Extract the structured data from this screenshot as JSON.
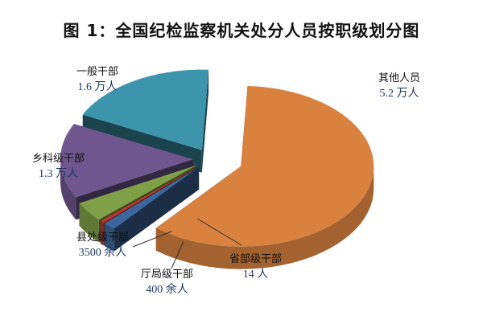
{
  "chart_data": {
    "type": "pie",
    "title": "图 1：全国纪检监察机关处分人员按职级划分图",
    "style": "3d-exploded",
    "slices": [
      {
        "name": "其他人员",
        "label_value": "5.2 万人",
        "value": 52000,
        "color": "#d9823f"
      },
      {
        "name": "省部级干部",
        "label_value": "14 人",
        "value": 14,
        "color": "#3d679c"
      },
      {
        "name": "厅局级干部",
        "label_value": "400 余人",
        "value": 400,
        "color": "#b8392f"
      },
      {
        "name": "县处级干部",
        "label_value": "3500 余人",
        "value": 3500,
        "color": "#80a048"
      },
      {
        "name": "乡科级干部",
        "label_value": "1.3 万人",
        "value": 13000,
        "color": "#6f568f"
      },
      {
        "name": "一般干部",
        "label_value": "1.6 万人",
        "value": 16000,
        "color": "#3c94ad"
      }
    ]
  }
}
